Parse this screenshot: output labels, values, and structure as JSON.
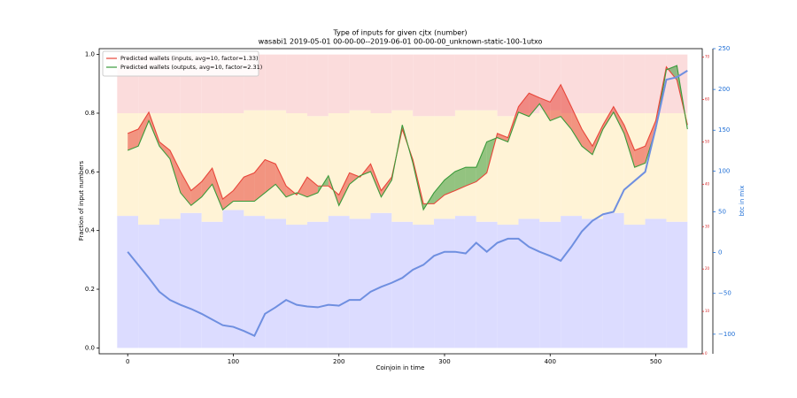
{
  "chart_data": {
    "type": "line",
    "title": "Type of inputs for given cjtx (number)",
    "subtitle": "wasabi1 2019-05-01 00-00-00--2019-06-01 00-00-00_unknown-static-100-1utxo",
    "x_label": "Coinjoin in time",
    "y_label": "Fraction of input numbers",
    "y3_label": "btc in mix",
    "xlim": [
      -27,
      544
    ],
    "xticks": [
      0,
      100,
      200,
      300,
      400,
      500
    ],
    "ylim": [
      -0.02,
      1.02
    ],
    "yticks": [
      {
        "value": 0,
        "label": "0.0"
      },
      {
        "value": 0.2,
        "label": "0.2"
      },
      {
        "value": 0.4,
        "label": "0.4"
      },
      {
        "value": 0.6,
        "label": "0.6"
      },
      {
        "value": 0.8,
        "label": "0.8"
      },
      {
        "value": 1,
        "label": "1.0"
      }
    ],
    "y2lim": [
      0,
      72
    ],
    "y2ticks": [
      0,
      10,
      20,
      30,
      40,
      50,
      60,
      70
    ],
    "y2color": "#d62728",
    "y3lim": [
      -124,
      250
    ],
    "y3ticks": [
      {
        "value": -100,
        "label": "−100"
      },
      {
        "value": -50,
        "label": "−50"
      },
      0,
      50,
      100,
      150,
      200,
      250
    ],
    "y3color": "#1f6fd6",
    "legend": "upper left",
    "x": [
      0,
      10,
      20,
      30,
      40,
      50,
      60,
      70,
      80,
      90,
      100,
      110,
      120,
      130,
      140,
      150,
      160,
      170,
      180,
      190,
      200,
      210,
      220,
      230,
      240,
      250,
      260,
      270,
      280,
      290,
      300,
      310,
      320,
      330,
      340,
      350,
      360,
      370,
      380,
      390,
      400,
      410,
      420,
      430,
      440,
      450,
      460,
      470,
      480,
      490,
      500,
      510,
      520,
      530
    ],
    "series": [
      {
        "name": "Predicted wallets (inputs, avg=10, factor=1.33)",
        "color": "#e8463a",
        "axis": "y2",
        "values": [
          52,
          53,
          57,
          50,
          48,
          43,
          38.5,
          40.6,
          43.8,
          36.5,
          38.5,
          41.7,
          42.7,
          45.8,
          44.8,
          39.6,
          37.5,
          41.7,
          39.6,
          39.6,
          37.5,
          42.7,
          41.7,
          44.8,
          38.5,
          41.7,
          53,
          45.8,
          35.4,
          35.4,
          37.5,
          38.5,
          39.6,
          40.6,
          42.7,
          52,
          51,
          58.3,
          61.5,
          60.4,
          59.4,
          63.5,
          58.3,
          53,
          49,
          54,
          58.3,
          54,
          48,
          49,
          55,
          67.7,
          64.6,
          54
        ]
      },
      {
        "name": "Predicted wallets (outputs, avg=10, factor=2.31)",
        "color": "#3a9a3a",
        "axis": "y2",
        "values": [
          48,
          49,
          55,
          49,
          46,
          38,
          35,
          37,
          40,
          34,
          36,
          36,
          36,
          38,
          40,
          37,
          38,
          37,
          38,
          42,
          35,
          40,
          42,
          43,
          37,
          41,
          54,
          45,
          34,
          38,
          41,
          43,
          44,
          44,
          50,
          51,
          50,
          57,
          56,
          59,
          55,
          56,
          53,
          49,
          47,
          53,
          57,
          52,
          44,
          45,
          53,
          67,
          68,
          53
        ]
      },
      {
        "color": "#6f8fe0",
        "axis": "y3",
        "values": [
          1,
          -15,
          -31,
          -48,
          -58,
          -64,
          -69,
          -75,
          -82,
          -89,
          -91,
          -96,
          -102,
          -75,
          -67,
          -58,
          -64,
          -66,
          -67,
          -64,
          -65,
          -58,
          -58,
          -48,
          -42,
          -37,
          -31,
          -21,
          -15,
          -4,
          1,
          1,
          -1,
          12,
          1,
          12,
          17,
          17,
          7,
          1,
          -4,
          -10,
          7,
          26,
          39,
          47,
          50,
          77,
          88,
          99,
          153,
          212,
          215,
          223
        ]
      }
    ],
    "bars": {
      "x": [
        0,
        20,
        40,
        60,
        80,
        100,
        120,
        140,
        160,
        180,
        200,
        220,
        240,
        260,
        280,
        300,
        320,
        340,
        360,
        380,
        400,
        420,
        440,
        460,
        480,
        500,
        520
      ],
      "series": [
        {
          "color": "#dcdcff",
          "values": [
            0.45,
            0.42,
            0.44,
            0.46,
            0.43,
            0.47,
            0.45,
            0.44,
            0.42,
            0.43,
            0.45,
            0.44,
            0.46,
            0.43,
            0.42,
            0.44,
            0.45,
            0.43,
            0.42,
            0.44,
            0.43,
            0.45,
            0.44,
            0.46,
            0.42,
            0.44,
            0.43
          ]
        },
        {
          "color": "#fff3d6",
          "values": [
            0.35,
            0.38,
            0.36,
            0.34,
            0.37,
            0.33,
            0.36,
            0.37,
            0.38,
            0.36,
            0.35,
            0.37,
            0.34,
            0.38,
            0.37,
            0.35,
            0.36,
            0.38,
            0.37,
            0.36,
            0.38,
            0.35,
            0.36,
            0.34,
            0.38,
            0.36,
            0.37
          ]
        },
        {
          "color": "#fbdcdc",
          "values": [
            0.2,
            0.2,
            0.2,
            0.2,
            0.2,
            0.2,
            0.19,
            0.19,
            0.2,
            0.21,
            0.2,
            0.19,
            0.2,
            0.19,
            0.21,
            0.21,
            0.19,
            0.19,
            0.21,
            0.2,
            0.19,
            0.2,
            0.2,
            0.2,
            0.2,
            0.2,
            0.2
          ]
        }
      ]
    }
  }
}
